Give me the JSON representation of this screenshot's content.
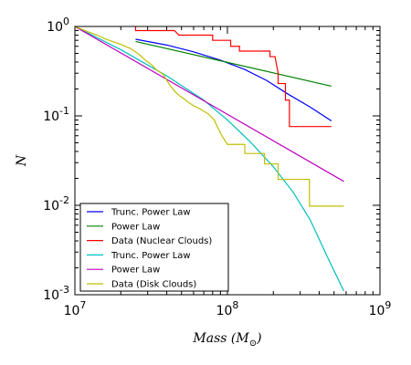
{
  "chart_data": {
    "type": "line",
    "title": "",
    "xlabel": "Mass ($M_{\\odot}$)",
    "ylabel": "N",
    "xscale": "log",
    "yscale": "log",
    "xlim": [
      10000000,
      1000000000
    ],
    "ylim": [
      0.001,
      1
    ],
    "x_ticks": [
      {
        "value": 10000000,
        "base": "10",
        "exp": "7"
      },
      {
        "value": 100000000,
        "base": "10",
        "exp": "8"
      },
      {
        "value": 1000000000,
        "base": "10",
        "exp": "9"
      }
    ],
    "y_ticks": [
      {
        "value": 0.001,
        "base": "10",
        "exp": "-3"
      },
      {
        "value": 0.01,
        "base": "10",
        "exp": "-2"
      },
      {
        "value": 0.1,
        "base": "10",
        "exp": "-1"
      },
      {
        "value": 1,
        "base": "10",
        "exp": "0"
      }
    ],
    "legend_position": "lower-left",
    "series": [
      {
        "name": "Trunc. Power Law",
        "color": "#0000ff",
        "step": false,
        "points": [
          [
            25000000,
            0.72
          ],
          [
            40000000,
            0.62
          ],
          [
            60000000,
            0.52
          ],
          [
            90000000,
            0.42
          ],
          [
            130000000,
            0.33
          ],
          [
            180000000,
            0.25
          ],
          [
            250000000,
            0.175
          ],
          [
            350000000,
            0.125
          ],
          [
            480000000,
            0.088
          ]
        ]
      },
      {
        "name": "Power Law",
        "color": "#008000",
        "step": false,
        "points": [
          [
            25000000,
            0.68
          ],
          [
            480000000,
            0.215
          ]
        ]
      },
      {
        "name": "Data (Nuclear Clouds)",
        "color": "#ff0000",
        "step": true,
        "points": [
          [
            25000000,
            1.0
          ],
          [
            25000000,
            0.9
          ],
          [
            45000000,
            0.9
          ],
          [
            48000000,
            0.8
          ],
          [
            80000000,
            0.8
          ],
          [
            80000000,
            0.7
          ],
          [
            105000000,
            0.7
          ],
          [
            105000000,
            0.6
          ],
          [
            120000000,
            0.6
          ],
          [
            120000000,
            0.53
          ],
          [
            190000000,
            0.53
          ],
          [
            190000000,
            0.46
          ],
          [
            205000000,
            0.46
          ],
          [
            215000000,
            0.3
          ],
          [
            215000000,
            0.23
          ],
          [
            240000000,
            0.23
          ],
          [
            240000000,
            0.15
          ],
          [
            255000000,
            0.15
          ],
          [
            255000000,
            0.076
          ],
          [
            480000000,
            0.076
          ]
        ]
      },
      {
        "name": "Trunc. Power Law",
        "color": "#00bfbf",
        "step": false,
        "points": [
          [
            10000000,
            1.0
          ],
          [
            20000000,
            0.55
          ],
          [
            40000000,
            0.28
          ],
          [
            70000000,
            0.15
          ],
          [
            100000000,
            0.09
          ],
          [
            140000000,
            0.052
          ],
          [
            200000000,
            0.027
          ],
          [
            270000000,
            0.014
          ],
          [
            350000000,
            0.0068
          ],
          [
            450000000,
            0.0027
          ],
          [
            580000000,
            0.0011
          ]
        ]
      },
      {
        "name": "Power Law",
        "color": "#bf00bf",
        "step": false,
        "points": [
          [
            10000000,
            1.0
          ],
          [
            580000000,
            0.0185
          ]
        ]
      },
      {
        "name": "Data (Disk Clouds)",
        "color": "#bfbf00",
        "step": true,
        "points": [
          [
            10000000,
            1.0
          ],
          [
            12000000,
            0.88
          ],
          [
            14000000,
            0.8
          ],
          [
            16000000,
            0.72
          ],
          [
            18000000,
            0.67
          ],
          [
            20000000,
            0.63
          ],
          [
            23000000,
            0.57
          ],
          [
            25000000,
            0.52
          ],
          [
            27000000,
            0.47
          ],
          [
            29000000,
            0.42
          ],
          [
            32000000,
            0.37
          ],
          [
            34000000,
            0.33
          ],
          [
            38000000,
            0.29
          ],
          [
            40000000,
            0.25
          ],
          [
            42000000,
            0.22
          ],
          [
            45000000,
            0.19
          ],
          [
            48000000,
            0.17
          ],
          [
            52000000,
            0.155
          ],
          [
            56000000,
            0.14
          ],
          [
            60000000,
            0.13
          ],
          [
            66000000,
            0.12
          ],
          [
            75000000,
            0.105
          ],
          [
            82000000,
            0.09
          ],
          [
            86000000,
            0.075
          ],
          [
            92000000,
            0.06
          ],
          [
            100000000,
            0.048
          ],
          [
            130000000,
            0.048
          ],
          [
            130000000,
            0.038
          ],
          [
            175000000,
            0.038
          ],
          [
            175000000,
            0.029
          ],
          [
            215000000,
            0.029
          ],
          [
            215000000,
            0.0195
          ],
          [
            345000000,
            0.0195
          ],
          [
            345000000,
            0.0098
          ],
          [
            580000000,
            0.0098
          ]
        ]
      }
    ]
  }
}
